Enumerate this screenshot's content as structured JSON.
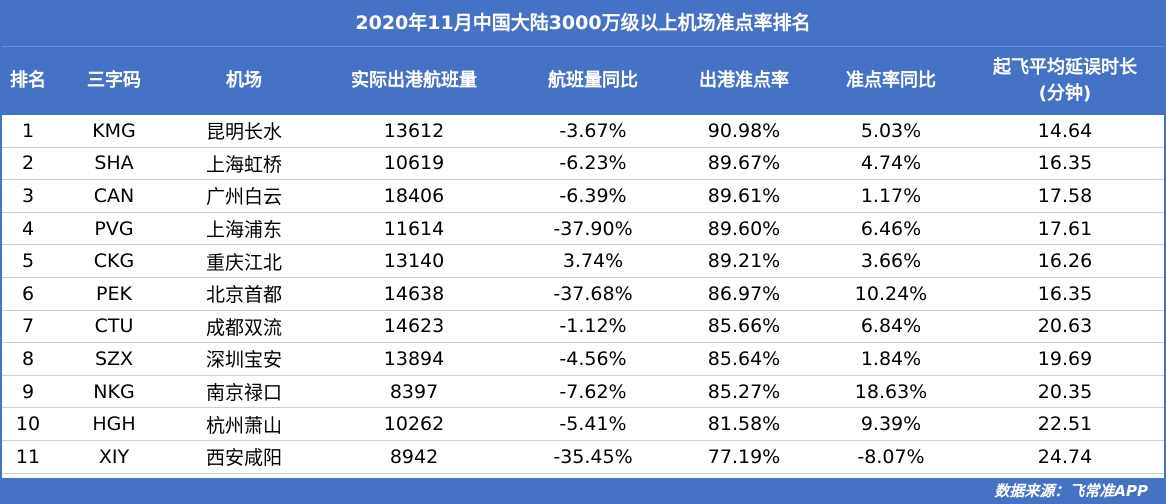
{
  "title": "2020年11月中国大陆3000万级以上机场准点率排名",
  "columns": [
    "排名",
    "三字码",
    "机场",
    "实际出港航班量",
    "航班量同比",
    "出港准点率",
    "准点率同比",
    "起飞平均延误时长",
    "(分钟)"
  ],
  "rows": [
    [
      "1",
      "KMG",
      "昆明长水",
      "13612",
      "-3.67%",
      "90.98%",
      "5.03%",
      "14.64"
    ],
    [
      "2",
      "SHA",
      "上海虹桥",
      "10619",
      "-6.23%",
      "89.67%",
      "4.74%",
      "16.35"
    ],
    [
      "3",
      "CAN",
      "广州白云",
      "18406",
      "-6.39%",
      "89.61%",
      "1.17%",
      "17.58"
    ],
    [
      "4",
      "PVG",
      "上海浦东",
      "11614",
      "-37.90%",
      "89.60%",
      "6.46%",
      "17.61"
    ],
    [
      "5",
      "CKG",
      "重庆江北",
      "13140",
      "3.74%",
      "89.21%",
      "3.66%",
      "16.26"
    ],
    [
      "6",
      "PEK",
      "北京首都",
      "14638",
      "-37.68%",
      "86.97%",
      "10.24%",
      "16.35"
    ],
    [
      "7",
      "CTU",
      "成都双流",
      "14623",
      "-1.12%",
      "85.66%",
      "6.84%",
      "20.63"
    ],
    [
      "8",
      "SZX",
      "深圳宝安",
      "13894",
      "-4.56%",
      "85.64%",
      "1.84%",
      "19.69"
    ],
    [
      "9",
      "NKG",
      "南京禄口",
      "8397",
      "-7.62%",
      "85.27%",
      "18.63%",
      "20.35"
    ],
    [
      "10",
      "HGH",
      "杭州萧山",
      "10262",
      "-5.41%",
      "81.58%",
      "9.39%",
      "22.51"
    ],
    [
      "11",
      "XIY",
      "西安咸阳",
      "8942",
      "-35.45%",
      "77.19%",
      "-8.07%",
      "24.74"
    ]
  ],
  "source": "数据来源：飞常准APP",
  "colors": {
    "header_bg": "#4472c4",
    "header_text": "#ffffff"
  }
}
